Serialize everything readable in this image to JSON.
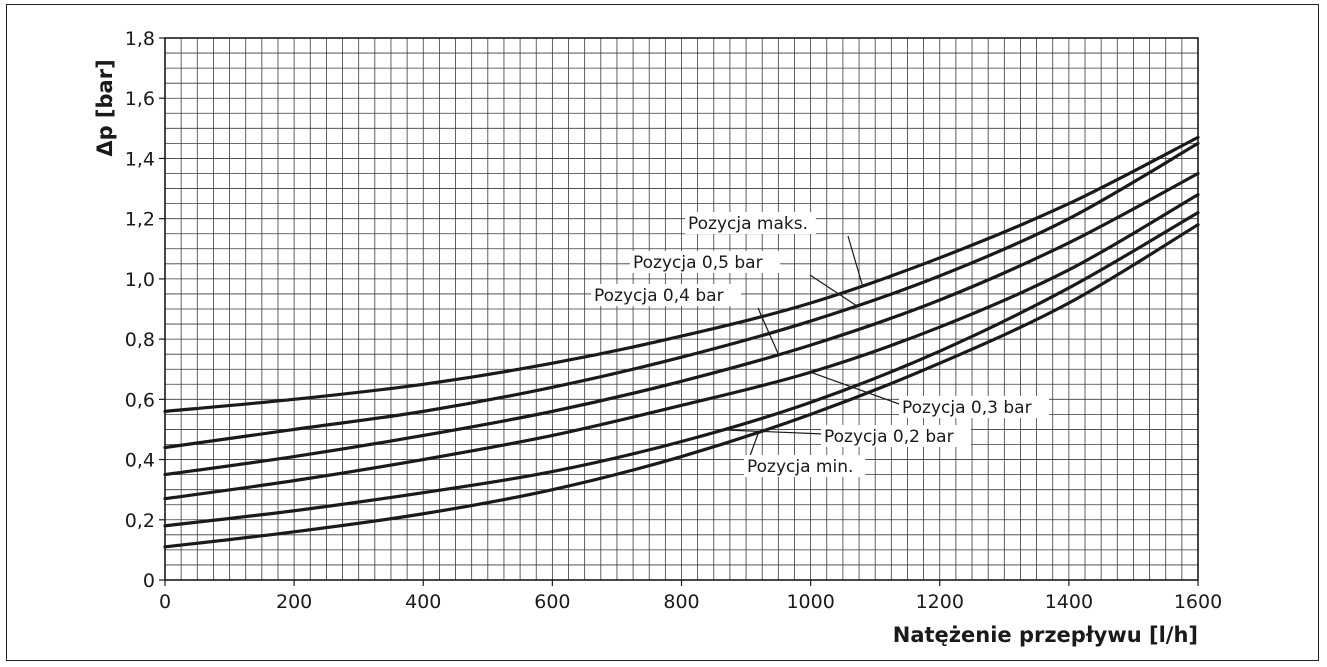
{
  "chart_data": {
    "type": "line",
    "xlabel": "Natężenie przepływu [l/h]",
    "ylabel": "Δp [bar]",
    "xlim": [
      0,
      1600
    ],
    "ylim": [
      0,
      1.8
    ],
    "x_ticks": [
      "0",
      "200",
      "400",
      "600",
      "800",
      "1000",
      "1200",
      "1400",
      "1600"
    ],
    "y_ticks": [
      "0",
      "0,2",
      "0,4",
      "0,6",
      "0,8",
      "1,0",
      "1,2",
      "1,4",
      "1,6",
      "1,8"
    ],
    "grid": true,
    "x": [
      0,
      200,
      400,
      600,
      800,
      1000,
      1200,
      1400,
      1600
    ],
    "series": [
      {
        "name": "Pozycja maks.",
        "values": [
          0.56,
          0.6,
          0.65,
          0.72,
          0.81,
          0.92,
          1.07,
          1.25,
          1.47
        ]
      },
      {
        "name": "Pozycja 0,5 bar",
        "values": [
          0.44,
          0.5,
          0.56,
          0.64,
          0.74,
          0.86,
          1.01,
          1.2,
          1.45
        ]
      },
      {
        "name": "Pozycja 0,4 bar",
        "values": [
          0.35,
          0.41,
          0.48,
          0.56,
          0.66,
          0.78,
          0.93,
          1.12,
          1.35
        ]
      },
      {
        "name": "Pozycja 0,3 bar",
        "values": [
          0.27,
          0.33,
          0.4,
          0.48,
          0.58,
          0.69,
          0.84,
          1.03,
          1.28
        ]
      },
      {
        "name": "Pozycja 0,2 bar",
        "values": [
          0.18,
          0.23,
          0.29,
          0.36,
          0.46,
          0.59,
          0.76,
          0.97,
          1.22
        ]
      },
      {
        "name": "Pozycja min.",
        "values": [
          0.11,
          0.16,
          0.22,
          0.3,
          0.41,
          0.55,
          0.72,
          0.92,
          1.18
        ]
      }
    ],
    "annotations": [
      {
        "text": "Pozycja maks.",
        "series": 0,
        "at_x": 1080,
        "label_x": 0,
        "label_y": 1.17,
        "anchor": "start"
      },
      {
        "text": "Pozycja 0,5 bar",
        "series": 1,
        "at_x": 1070,
        "label_x": 0,
        "label_y": 1.05,
        "anchor": "start"
      },
      {
        "text": "Pozycja 0,4 bar",
        "series": 2,
        "at_x": 950,
        "label_x": 0,
        "label_y": 0.94,
        "anchor": "start"
      },
      {
        "text": "Pozycja 0,3 bar",
        "series": 3,
        "at_x": 1000,
        "label_x": 0,
        "label_y": 0.58,
        "anchor": "start"
      },
      {
        "text": "Pozycja 0,2 bar",
        "series": 4,
        "at_x": 860,
        "label_x": 0,
        "label_y": 0.48,
        "anchor": "start"
      },
      {
        "text": "Pozycja min.",
        "series": 5,
        "at_x": 920,
        "label_x": 0,
        "label_y": 0.38,
        "anchor": "start"
      }
    ]
  }
}
